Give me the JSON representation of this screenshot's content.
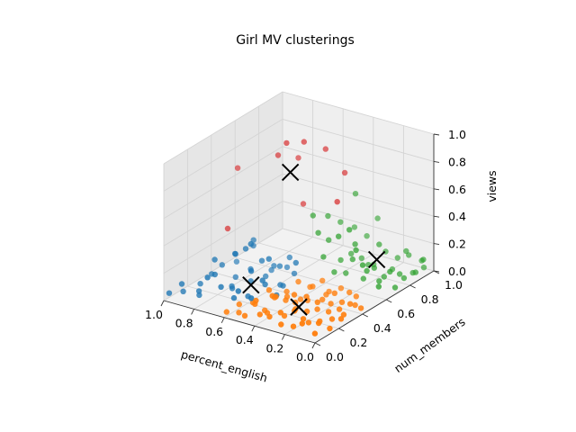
{
  "chart_data": {
    "type": "scatter",
    "projection": "3d",
    "title": "Girl MV clusterings",
    "xlabel": "percent_english",
    "ylabel": "num_members",
    "zlabel": "views",
    "xlim": [
      0.0,
      1.0
    ],
    "ylim": [
      0.0,
      1.0
    ],
    "zlim": [
      0.0,
      1.0
    ],
    "xticks": [
      "1.0",
      "0.8",
      "0.6",
      "0.4",
      "0.2",
      "0.0"
    ],
    "yticks": [
      "0.0",
      "0.2",
      "0.4",
      "0.6",
      "0.8",
      "1.0"
    ],
    "zticks": [
      "0.0",
      "0.2",
      "0.4",
      "0.6",
      "0.8",
      "1.0"
    ],
    "grid": true,
    "colors": {
      "cluster_0": "#1f77b4",
      "cluster_1": "#ff7f0e",
      "cluster_2": "#2ca02c",
      "cluster_3": "#d62728",
      "centroid": "#000000"
    },
    "series": [
      {
        "cluster": 0,
        "color": "#1f77b4",
        "points": [
          [
            0.98,
            0.02,
            0.05
          ],
          [
            0.95,
            0.1,
            0.03
          ],
          [
            0.92,
            0.05,
            0.12
          ],
          [
            0.9,
            0.18,
            0.06
          ],
          [
            0.88,
            0.25,
            0.1
          ],
          [
            0.86,
            0.12,
            0.02
          ],
          [
            0.85,
            0.3,
            0.15
          ],
          [
            0.83,
            0.08,
            0.08
          ],
          [
            0.82,
            0.2,
            0.25
          ],
          [
            0.8,
            0.35,
            0.05
          ],
          [
            0.78,
            0.15,
            0.18
          ],
          [
            0.77,
            0.28,
            0.03
          ],
          [
            0.75,
            0.05,
            0.22
          ],
          [
            0.74,
            0.4,
            0.1
          ],
          [
            0.72,
            0.22,
            0.06
          ],
          [
            0.71,
            0.32,
            0.3
          ],
          [
            0.7,
            0.1,
            0.14
          ],
          [
            0.68,
            0.45,
            0.04
          ],
          [
            0.67,
            0.18,
            0.35
          ],
          [
            0.66,
            0.3,
            0.09
          ],
          [
            0.65,
            0.38,
            0.2
          ],
          [
            0.63,
            0.12,
            0.07
          ],
          [
            0.62,
            0.25,
            0.4
          ],
          [
            0.61,
            0.48,
            0.12
          ],
          [
            0.6,
            0.2,
            0.05
          ],
          [
            0.58,
            0.35,
            0.25
          ],
          [
            0.57,
            0.08,
            0.16
          ],
          [
            0.56,
            0.42,
            0.03
          ],
          [
            0.55,
            0.28,
            0.11
          ],
          [
            0.54,
            0.15,
            0.28
          ],
          [
            0.53,
            0.5,
            0.08
          ],
          [
            0.52,
            0.22,
            0.18
          ],
          [
            0.51,
            0.38,
            0.06
          ],
          [
            0.5,
            0.1,
            0.12
          ],
          [
            0.49,
            0.3,
            0.04
          ],
          [
            0.48,
            0.45,
            0.2
          ],
          [
            0.72,
            0.55,
            0.02
          ],
          [
            0.68,
            0.52,
            0.08
          ],
          [
            0.64,
            0.58,
            0.05
          ],
          [
            0.6,
            0.55,
            0.15
          ],
          [
            0.8,
            0.5,
            0.2
          ],
          [
            0.76,
            0.45,
            0.28
          ],
          [
            0.84,
            0.4,
            0.18
          ],
          [
            0.88,
            0.46,
            0.08
          ]
        ]
      },
      {
        "cluster": 1,
        "color": "#ff7f0e",
        "points": [
          [
            0.48,
            0.02,
            0.04
          ],
          [
            0.46,
            0.08,
            0.1
          ],
          [
            0.45,
            0.15,
            0.02
          ],
          [
            0.44,
            0.22,
            0.08
          ],
          [
            0.43,
            0.05,
            0.15
          ],
          [
            0.42,
            0.3,
            0.05
          ],
          [
            0.41,
            0.12,
            0.03
          ],
          [
            0.4,
            0.18,
            0.12
          ],
          [
            0.39,
            0.25,
            0.06
          ],
          [
            0.38,
            0.02,
            0.08
          ],
          [
            0.37,
            0.35,
            0.02
          ],
          [
            0.36,
            0.1,
            0.18
          ],
          [
            0.35,
            0.28,
            0.04
          ],
          [
            0.34,
            0.05,
            0.06
          ],
          [
            0.33,
            0.4,
            0.1
          ],
          [
            0.32,
            0.15,
            0.02
          ],
          [
            0.31,
            0.22,
            0.14
          ],
          [
            0.3,
            0.32,
            0.05
          ],
          [
            0.29,
            0.08,
            0.09
          ],
          [
            0.28,
            0.45,
            0.03
          ],
          [
            0.27,
            0.18,
            0.07
          ],
          [
            0.26,
            0.26,
            0.12
          ],
          [
            0.25,
            0.38,
            0.04
          ],
          [
            0.24,
            0.02,
            0.05
          ],
          [
            0.23,
            0.12,
            0.1
          ],
          [
            0.22,
            0.3,
            0.02
          ],
          [
            0.21,
            0.2,
            0.06
          ],
          [
            0.2,
            0.42,
            0.08
          ],
          [
            0.19,
            0.06,
            0.03
          ],
          [
            0.18,
            0.25,
            0.11
          ],
          [
            0.17,
            0.35,
            0.05
          ],
          [
            0.16,
            0.15,
            0.02
          ],
          [
            0.15,
            0.48,
            0.07
          ],
          [
            0.14,
            0.08,
            0.09
          ],
          [
            0.13,
            0.28,
            0.04
          ],
          [
            0.12,
            0.38,
            0.06
          ],
          [
            0.11,
            0.18,
            0.03
          ],
          [
            0.1,
            0.02,
            0.1
          ],
          [
            0.09,
            0.32,
            0.05
          ],
          [
            0.08,
            0.44,
            0.02
          ],
          [
            0.07,
            0.12,
            0.06
          ],
          [
            0.06,
            0.22,
            0.04
          ],
          [
            0.05,
            0.36,
            0.08
          ],
          [
            0.04,
            0.05,
            0.03
          ],
          [
            0.03,
            0.28,
            0.05
          ],
          [
            0.02,
            0.15,
            0.02
          ],
          [
            0.01,
            0.4,
            0.04
          ],
          [
            0.0,
            0.22,
            0.06
          ],
          [
            0.55,
            0.06,
            0.02
          ],
          [
            0.52,
            0.14,
            0.06
          ],
          [
            0.5,
            0.25,
            0.1
          ],
          [
            0.47,
            0.36,
            0.04
          ],
          [
            0.44,
            0.42,
            0.09
          ],
          [
            0.41,
            0.48,
            0.03
          ],
          [
            0.36,
            0.52,
            0.07
          ],
          [
            0.3,
            0.5,
            0.02
          ],
          [
            0.6,
            0.02,
            0.03
          ],
          [
            0.58,
            0.1,
            0.05
          ],
          [
            0.12,
            0.5,
            0.04
          ],
          [
            0.26,
            0.55,
            0.03
          ]
        ]
      },
      {
        "cluster": 2,
        "color": "#2ca02c",
        "points": [
          [
            0.45,
            0.6,
            0.35
          ],
          [
            0.42,
            0.65,
            0.28
          ],
          [
            0.4,
            0.58,
            0.2
          ],
          [
            0.38,
            0.7,
            0.12
          ],
          [
            0.36,
            0.62,
            0.08
          ],
          [
            0.35,
            0.75,
            0.15
          ],
          [
            0.33,
            0.68,
            0.05
          ],
          [
            0.32,
            0.8,
            0.1
          ],
          [
            0.3,
            0.72,
            0.25
          ],
          [
            0.28,
            0.85,
            0.04
          ],
          [
            0.27,
            0.66,
            0.18
          ],
          [
            0.26,
            0.78,
            0.08
          ],
          [
            0.24,
            0.9,
            0.12
          ],
          [
            0.23,
            0.7,
            0.03
          ],
          [
            0.22,
            0.82,
            0.22
          ],
          [
            0.2,
            0.95,
            0.06
          ],
          [
            0.19,
            0.74,
            0.1
          ],
          [
            0.18,
            0.88,
            0.02
          ],
          [
            0.16,
            0.64,
            0.14
          ],
          [
            0.15,
            0.98,
            0.08
          ],
          [
            0.14,
            0.76,
            0.04
          ],
          [
            0.12,
            0.92,
            0.15
          ],
          [
            0.11,
            0.68,
            0.06
          ],
          [
            0.1,
            0.84,
            0.03
          ],
          [
            0.08,
            1.0,
            0.05
          ],
          [
            0.07,
            0.72,
            0.12
          ],
          [
            0.06,
            0.9,
            0.02
          ],
          [
            0.05,
            0.6,
            0.08
          ],
          [
            0.04,
            0.8,
            0.04
          ],
          [
            0.03,
            0.95,
            0.1
          ],
          [
            0.02,
            0.7,
            0.03
          ],
          [
            0.01,
            0.86,
            0.06
          ],
          [
            0.48,
            0.72,
            0.4
          ],
          [
            0.46,
            0.8,
            0.32
          ],
          [
            0.5,
            0.62,
            0.45
          ],
          [
            0.43,
            0.88,
            0.25
          ],
          [
            0.38,
            0.92,
            0.18
          ],
          [
            0.34,
            0.96,
            0.3
          ],
          [
            0.3,
            0.58,
            0.38
          ],
          [
            0.26,
            0.62,
            0.42
          ],
          [
            0.2,
            0.6,
            0.3
          ],
          [
            0.14,
            0.58,
            0.22
          ],
          [
            0.4,
            0.85,
            0.52
          ],
          [
            0.05,
            0.98,
            0.02
          ]
        ]
      },
      {
        "cluster": 3,
        "color": "#d62728",
        "points": [
          [
            0.62,
            0.55,
            0.98
          ],
          [
            0.56,
            0.62,
            0.97
          ],
          [
            0.48,
            0.7,
            0.9
          ],
          [
            0.7,
            0.58,
            0.85
          ],
          [
            0.92,
            0.52,
            0.72
          ],
          [
            0.4,
            0.76,
            0.72
          ],
          [
            0.34,
            0.62,
            0.6
          ],
          [
            0.66,
            0.7,
            0.78
          ],
          [
            0.86,
            0.36,
            0.38
          ],
          [
            0.58,
            0.64,
            0.5
          ]
        ]
      }
    ],
    "centroids": [
      [
        0.62,
        0.25,
        0.1
      ],
      [
        0.28,
        0.22,
        0.06
      ],
      [
        0.22,
        0.8,
        0.12
      ],
      [
        0.65,
        0.62,
        0.72
      ]
    ]
  }
}
